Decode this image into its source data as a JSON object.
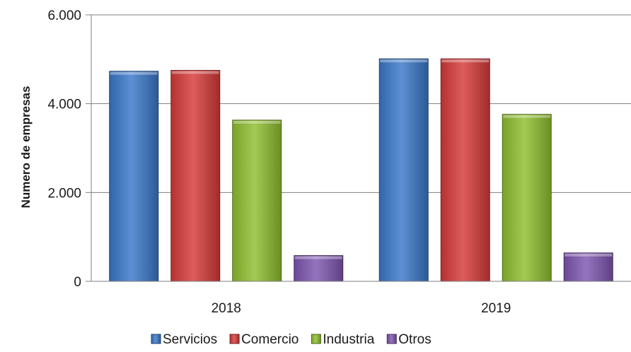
{
  "chart_data": {
    "type": "bar",
    "categories": [
      "2018",
      "2019"
    ],
    "series": [
      {
        "name": "Servicios",
        "values": [
          4730,
          5010
        ],
        "color": "#3a78c9"
      },
      {
        "name": "Comercio",
        "values": [
          4750,
          5010
        ],
        "color": "#d63a38"
      },
      {
        "name": "Industria",
        "values": [
          3630,
          3760
        ],
        "color": "#8fbe2e"
      },
      {
        "name": "Otros",
        "values": [
          580,
          640
        ],
        "color": "#7e55b0"
      }
    ],
    "ylabel": "Numero de empresas",
    "xlabel": "",
    "ylim": [
      0,
      6000
    ],
    "yticks": [
      0,
      2000,
      4000,
      6000
    ],
    "ytick_labels": [
      "0",
      "2.000",
      "4.000",
      "6.000"
    ],
    "grid": true,
    "legend_position": "bottom"
  }
}
